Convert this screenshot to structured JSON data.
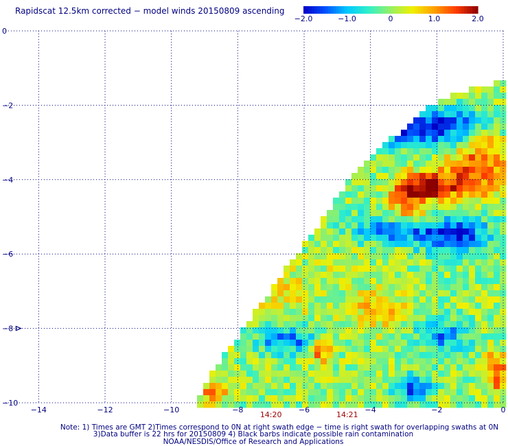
{
  "chart_data": {
    "type": "heatmap",
    "title": "Rapidscat 12.5km corrected − model winds 20150809 ascending",
    "xlabel": "",
    "ylabel": "",
    "xlim": [
      -15,
      0
    ],
    "ylim": [
      -10,
      0
    ],
    "grid": true,
    "x_ticks": [
      "−14",
      "−12",
      "−10",
      "−8",
      "−6",
      "−4",
      "−2",
      "0"
    ],
    "x_tick_values": [
      -14,
      -12,
      -10,
      -8,
      -6,
      -4,
      -2,
      0
    ],
    "y_ticks": [
      "0",
      "−2",
      "−4",
      "−6",
      "−8",
      "−10"
    ],
    "y_tick_values": [
      0,
      -2,
      -4,
      -6,
      -8,
      -10
    ],
    "colorbar": {
      "min": -2.0,
      "max": 2.0,
      "tick_labels": [
        "−2.0",
        "−1.0",
        "0",
        "1.0",
        "2.0"
      ],
      "tick_values": [
        -2.0,
        -1.0,
        0,
        1.0,
        2.0
      ],
      "colors": [
        "#0000c8",
        "#0050ff",
        "#00c8ff",
        "#32f0c8",
        "#96f064",
        "#f0f000",
        "#ffa000",
        "#ff3c00",
        "#8c0000"
      ]
    },
    "swath_edge": [
      [
        -9.3,
        -10
      ],
      [
        -8.8,
        -9.2
      ],
      [
        -8.0,
        -8.2
      ],
      [
        -7.2,
        -7.2
      ],
      [
        -6.4,
        -6.2
      ],
      [
        -5.4,
        -5.0
      ],
      [
        -4.8,
        -4.2
      ],
      [
        -4.0,
        -3.4
      ],
      [
        -3.0,
        -2.6
      ],
      [
        -2.0,
        -1.9
      ],
      [
        -1.0,
        -1.55
      ],
      [
        0,
        -1.35
      ]
    ],
    "anomaly_regions": [
      {
        "x": -2.5,
        "y": -4.2,
        "rx": 0.9,
        "ry": 0.35,
        "value": 1.9
      },
      {
        "x": -1.0,
        "y": -4.0,
        "rx": 1.3,
        "ry": 0.6,
        "value": 1.3
      },
      {
        "x": -0.6,
        "y": -3.1,
        "rx": 0.9,
        "ry": 0.5,
        "value": 1.1
      },
      {
        "x": -2.9,
        "y": -4.8,
        "rx": 0.7,
        "ry": 0.35,
        "value": 1.2
      },
      {
        "x": -2.3,
        "y": -2.6,
        "rx": 1.9,
        "ry": 0.55,
        "value": -1.9
      },
      {
        "x": -1.5,
        "y": -5.5,
        "rx": 1.2,
        "ry": 0.5,
        "value": -1.8
      },
      {
        "x": -3.5,
        "y": -5.3,
        "rx": 1.1,
        "ry": 0.45,
        "value": -1.2
      },
      {
        "x": -6.5,
        "y": -8.3,
        "rx": 1.0,
        "ry": 0.4,
        "value": -1.3
      },
      {
        "x": -1.8,
        "y": -8.2,
        "rx": 0.8,
        "ry": 0.45,
        "value": -1.2
      },
      {
        "x": -2.7,
        "y": -9.6,
        "rx": 0.6,
        "ry": 0.35,
        "value": -1.5
      },
      {
        "x": -3.8,
        "y": -7.5,
        "rx": 0.9,
        "ry": 0.55,
        "value": 0.8
      },
      {
        "x": -5.5,
        "y": -8.6,
        "rx": 0.4,
        "ry": 0.3,
        "value": 1.4
      },
      {
        "x": -0.2,
        "y": -9.2,
        "rx": 0.4,
        "ry": 0.6,
        "value": 1.4
      },
      {
        "x": -8.7,
        "y": -9.7,
        "rx": 0.6,
        "ry": 0.3,
        "value": 1.0
      },
      {
        "x": -6.8,
        "y": -7.0,
        "rx": 1.2,
        "ry": 0.6,
        "value": 0.6
      },
      {
        "x": -5.0,
        "y": -6.5,
        "rx": 1.0,
        "ry": 0.5,
        "value": 0.2
      }
    ],
    "time_labels": [
      {
        "label": "14:20",
        "x": -7.0
      },
      {
        "label": "14:21",
        "x": -4.7
      }
    ],
    "wind_barb": {
      "x": -14.6,
      "y": -8.0
    },
    "notes": [
      "Note: 1) Times are GMT 2)Times correspond to 0N at right swath edge − time is right swath for overlapping swaths at 0N",
      "3)Data buffer is 22 hrs for 20150809 4) Black barbs indicate possible rain contamination",
      "NOAA/NESDIS/Office of Research and Applications"
    ]
  }
}
